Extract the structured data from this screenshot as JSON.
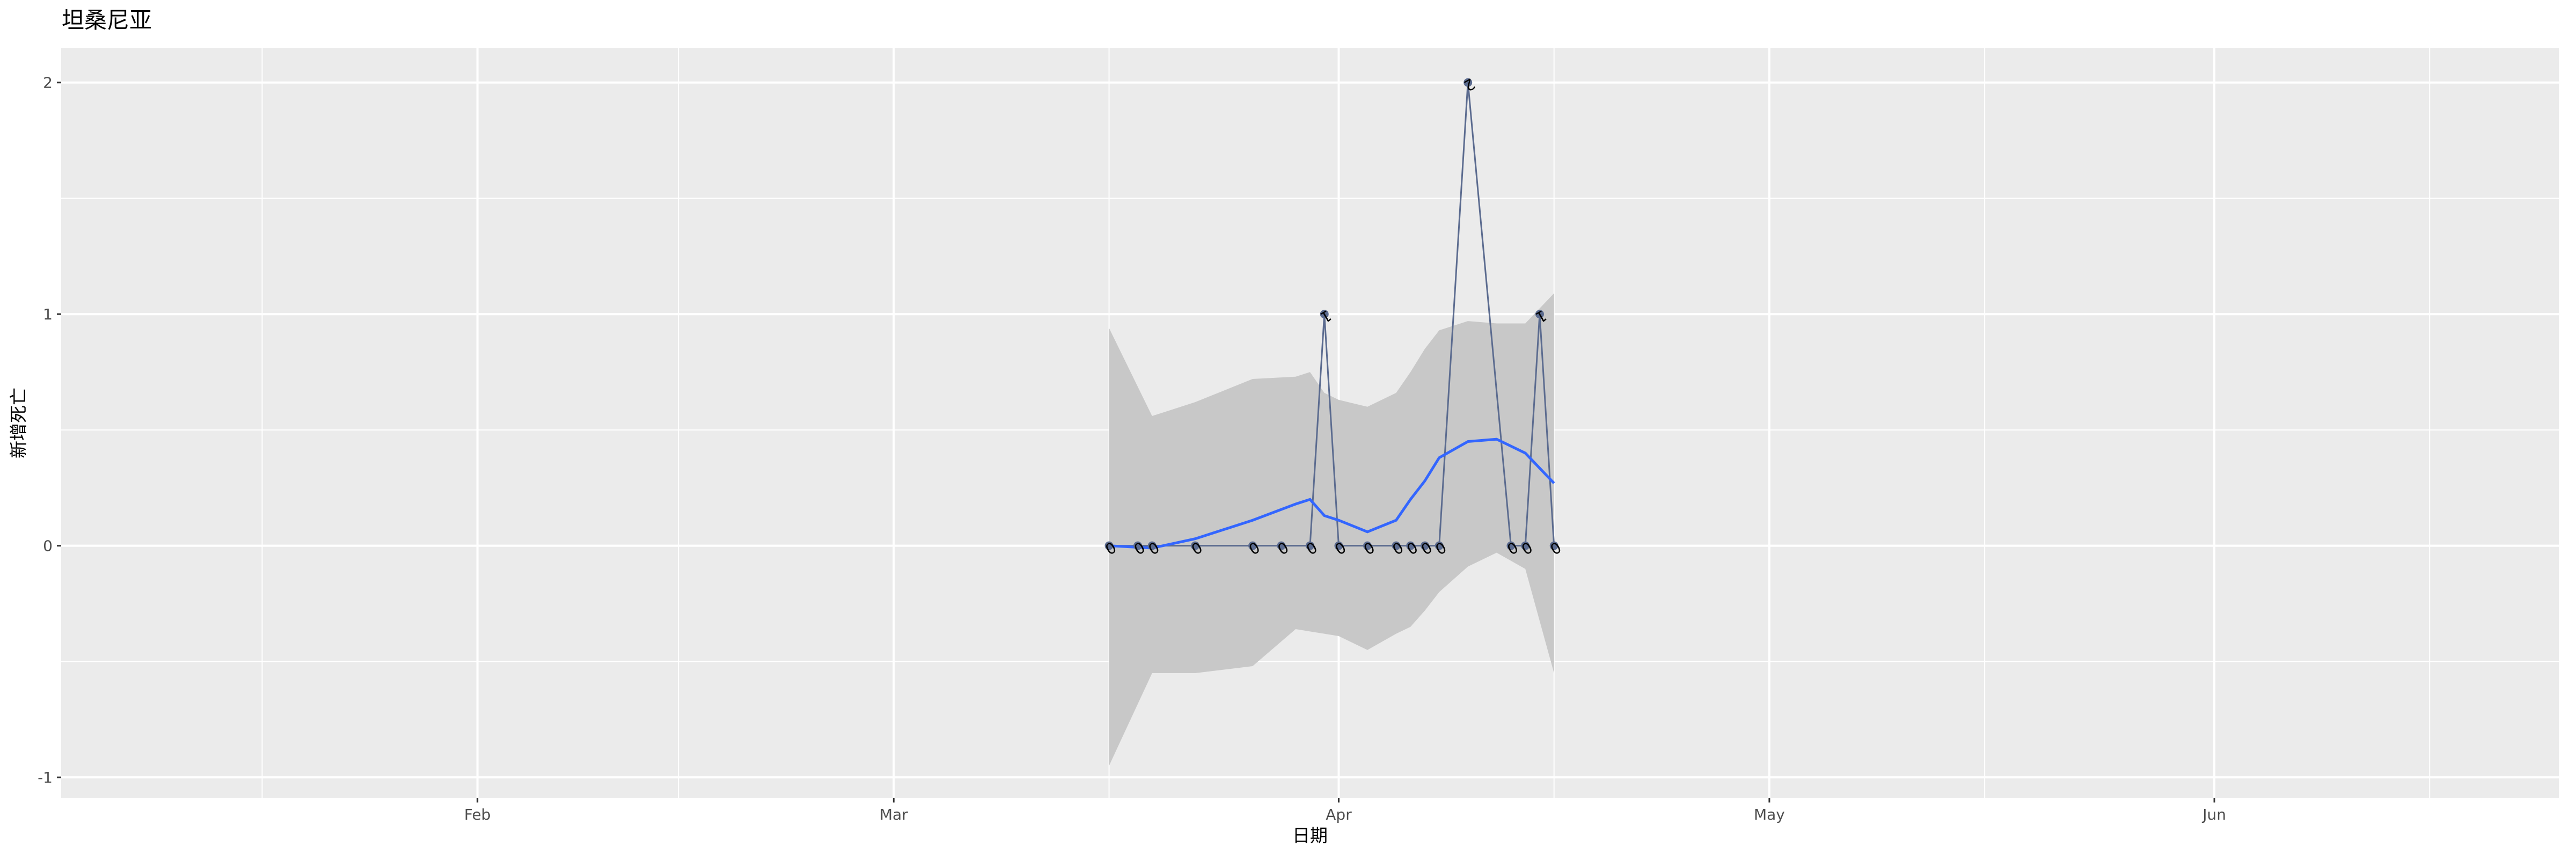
{
  "chart_data": {
    "type": "line",
    "title": "坦桑尼亚",
    "xlabel": "日期",
    "ylabel": "新增死亡",
    "xlim": [
      "2020-01-03",
      "2020-06-25"
    ],
    "ylim": [
      -1.09,
      2.15
    ],
    "x_ticks": [
      {
        "date": "2020-02-01",
        "label": "Feb"
      },
      {
        "date": "2020-03-01",
        "label": "Mar"
      },
      {
        "date": "2020-04-01",
        "label": "Apr"
      },
      {
        "date": "2020-05-01",
        "label": "May"
      },
      {
        "date": "2020-06-01",
        "label": "Jun"
      }
    ],
    "x_minor_ticks": [
      "2020-01-17",
      "2020-02-15",
      "2020-03-16",
      "2020-04-16",
      "2020-05-16",
      "2020-06-16"
    ],
    "y_ticks": [
      -1,
      0,
      1,
      2
    ],
    "y_minor_ticks": [
      -0.5,
      0.5,
      1.5
    ],
    "grid": true,
    "series": [
      {
        "x": [
          "2020-03-16",
          "2020-03-18",
          "2020-03-19",
          "2020-03-22",
          "2020-03-26",
          "2020-03-28",
          "2020-03-30",
          "2020-03-31",
          "2020-04-01",
          "2020-04-03",
          "2020-04-05",
          "2020-04-06",
          "2020-04-07",
          "2020-04-08",
          "2020-04-10",
          "2020-04-13",
          "2020-04-14",
          "2020-04-15",
          "2020-04-16"
        ],
        "y": [
          0,
          0,
          0,
          0,
          0,
          0,
          0,
          1,
          0,
          0,
          0,
          0,
          0,
          0,
          2,
          0,
          0,
          1,
          0
        ],
        "color": "#5B6B8F",
        "data_labels": true
      }
    ],
    "smooth": {
      "color": "#3366FF",
      "band_color": "#C8C8C8",
      "x": [
        "2020-03-16",
        "2020-03-19",
        "2020-03-22",
        "2020-03-26",
        "2020-03-29",
        "2020-03-30",
        "2020-03-31",
        "2020-04-01",
        "2020-04-03",
        "2020-04-05",
        "2020-04-06",
        "2020-04-07",
        "2020-04-08",
        "2020-04-10",
        "2020-04-12",
        "2020-04-14",
        "2020-04-16"
      ],
      "y": [
        0.0,
        -0.01,
        0.03,
        0.11,
        0.18,
        0.2,
        0.13,
        0.11,
        0.06,
        0.11,
        0.2,
        0.28,
        0.38,
        0.45,
        0.46,
        0.4,
        0.27
      ],
      "upper": [
        0.94,
        0.56,
        0.62,
        0.72,
        0.73,
        0.75,
        0.66,
        0.63,
        0.6,
        0.66,
        0.75,
        0.85,
        0.93,
        0.97,
        0.96,
        0.96,
        1.09
      ],
      "lower": [
        -0.95,
        -0.55,
        -0.55,
        -0.52,
        -0.36,
        -0.37,
        -0.38,
        -0.39,
        -0.45,
        -0.38,
        -0.35,
        -0.28,
        -0.2,
        -0.09,
        -0.03,
        -0.1,
        -0.55
      ]
    }
  }
}
